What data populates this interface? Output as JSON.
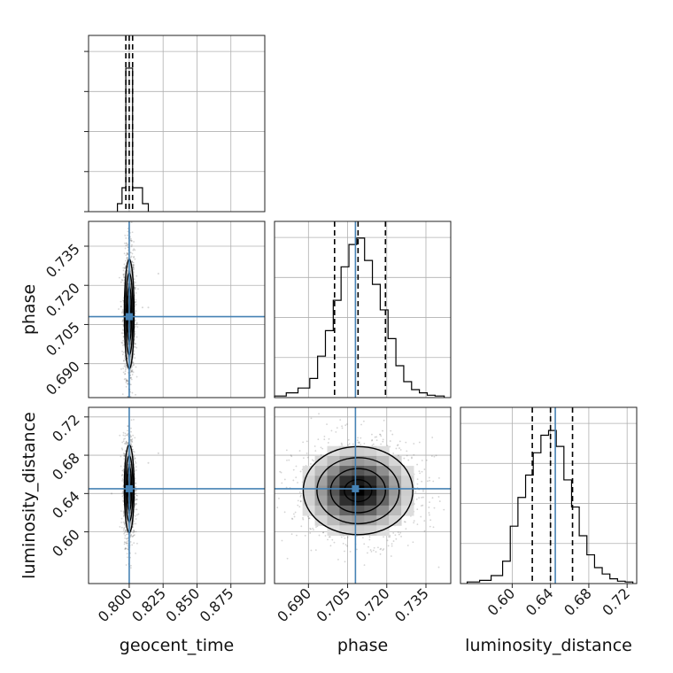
{
  "figure_title": "",
  "chart_data": {
    "type": "corner",
    "parameters": [
      "geocent_time",
      "phase",
      "luminosity_distance"
    ],
    "truths": {
      "geocent_time": 0.8,
      "phase": 0.708,
      "luminosity_distance": 0.645
    },
    "quantiles": {
      "geocent_time": [
        0.7975,
        0.8,
        0.8025
      ],
      "phase": [
        0.7,
        0.709,
        0.7195
      ],
      "luminosity_distance": [
        0.621,
        0.64,
        0.663
      ]
    },
    "ranges": {
      "geocent_time": [
        0.77,
        0.9
      ],
      "phase": [
        0.677,
        0.7445
      ],
      "luminosity_distance": [
        0.546,
        0.73
      ]
    },
    "ticks": {
      "geocent_time": [
        "0.800",
        "0.825",
        "0.850",
        "0.875"
      ],
      "phase": [
        "0.690",
        "0.705",
        "0.720",
        "0.735"
      ],
      "luminosity_distance": [
        "0.60",
        "0.64",
        "0.68",
        "0.72"
      ]
    },
    "histograms": {
      "geocent_time": {
        "edges": [
          0.7913,
          0.7947,
          0.7975,
          0.8,
          0.8025,
          0.8098,
          0.8141
        ],
        "counts": [
          0.05,
          0.15,
          0.9,
          0.9,
          0.15,
          0.05
        ]
      },
      "phase": {
        "edges": [
          0.677,
          0.6815,
          0.686,
          0.6905,
          0.6935,
          0.6965,
          0.6995,
          0.7025,
          0.7055,
          0.7085,
          0.7115,
          0.7145,
          0.7175,
          0.7205,
          0.7235,
          0.7265,
          0.7295,
          0.7325,
          0.7355,
          0.7385,
          0.742
        ],
        "counts": [
          0.01,
          0.03,
          0.06,
          0.12,
          0.26,
          0.42,
          0.61,
          0.82,
          0.96,
          1.0,
          0.86,
          0.71,
          0.55,
          0.37,
          0.2,
          0.1,
          0.05,
          0.03,
          0.015,
          0.01
        ]
      },
      "luminosity_distance": {
        "edges": [
          0.553,
          0.566,
          0.578,
          0.59,
          0.598,
          0.606,
          0.614,
          0.622,
          0.63,
          0.638,
          0.646,
          0.654,
          0.662,
          0.67,
          0.678,
          0.686,
          0.694,
          0.702,
          0.71,
          0.718,
          0.726
        ],
        "counts": [
          0.01,
          0.02,
          0.05,
          0.14,
          0.36,
          0.54,
          0.68,
          0.82,
          0.93,
          0.96,
          0.86,
          0.65,
          0.48,
          0.3,
          0.18,
          0.1,
          0.06,
          0.03,
          0.015,
          0.01
        ]
      }
    },
    "pairs": [
      {
        "x": "geocent_time",
        "y": "phase",
        "mean": [
          0.8,
          0.709
        ],
        "sd": [
          0.0018,
          0.0105
        ],
        "outliers": [
          [
            0.8215,
            0.7245
          ],
          [
            0.8098,
            0.7115
          ],
          [
            0.805,
            0.7126
          ],
          [
            0.8141,
            0.7115
          ]
        ]
      },
      {
        "x": "geocent_time",
        "y": "luminosity_distance",
        "mean": [
          0.8,
          0.645
        ],
        "sd": [
          0.0018,
          0.023
        ],
        "outliers": [
          [
            0.8141,
            0.672
          ],
          [
            0.8215,
            0.682
          ],
          [
            0.787,
            0.64
          ]
        ]
      },
      {
        "x": "phase",
        "y": "luminosity_distance",
        "mean": [
          0.709,
          0.643
        ],
        "sd": [
          0.0105,
          0.023
        ],
        "outliers": []
      }
    ]
  }
}
